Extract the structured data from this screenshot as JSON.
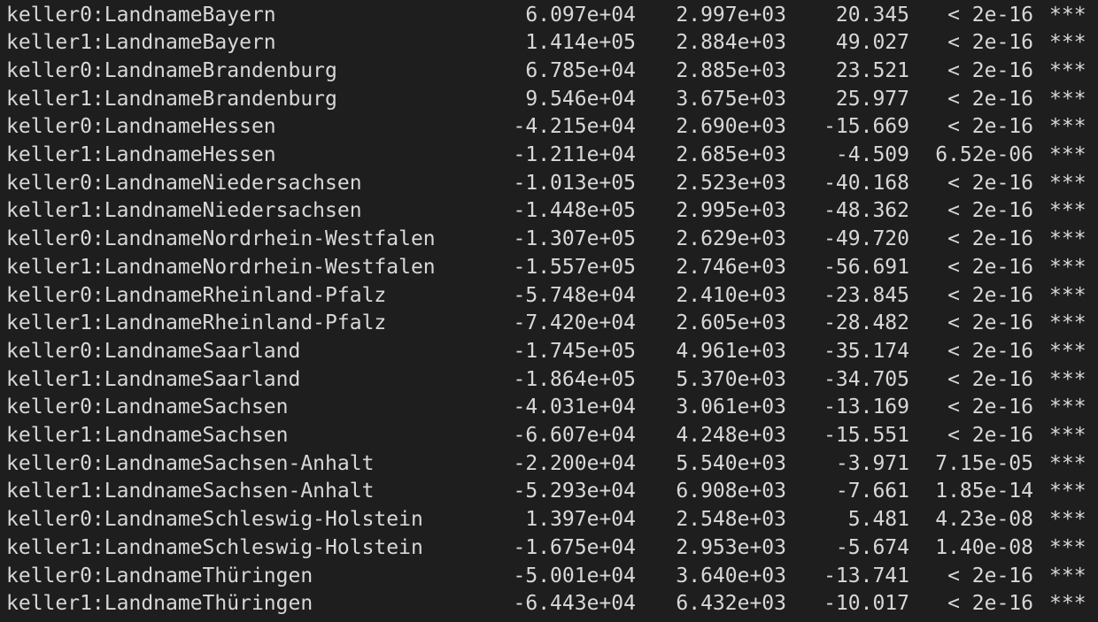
{
  "terminal": {
    "rows": [
      {
        "term": "keller0:LandnameBayern",
        "estimate": "6.097e+04",
        "std_error": "2.997e+03",
        "t_value": "20.345",
        "p_value": "< 2e-16",
        "signif": "***"
      },
      {
        "term": "keller1:LandnameBayern",
        "estimate": "1.414e+05",
        "std_error": "2.884e+03",
        "t_value": "49.027",
        "p_value": "< 2e-16",
        "signif": "***"
      },
      {
        "term": "keller0:LandnameBrandenburg",
        "estimate": "6.785e+04",
        "std_error": "2.885e+03",
        "t_value": "23.521",
        "p_value": "< 2e-16",
        "signif": "***"
      },
      {
        "term": "keller1:LandnameBrandenburg",
        "estimate": "9.546e+04",
        "std_error": "3.675e+03",
        "t_value": "25.977",
        "p_value": "< 2e-16",
        "signif": "***"
      },
      {
        "term": "keller0:LandnameHessen",
        "estimate": "-4.215e+04",
        "std_error": "2.690e+03",
        "t_value": "-15.669",
        "p_value": "< 2e-16",
        "signif": "***"
      },
      {
        "term": "keller1:LandnameHessen",
        "estimate": "-1.211e+04",
        "std_error": "2.685e+03",
        "t_value": "-4.509",
        "p_value": "6.52e-06",
        "signif": "***"
      },
      {
        "term": "keller0:LandnameNiedersachsen",
        "estimate": "-1.013e+05",
        "std_error": "2.523e+03",
        "t_value": "-40.168",
        "p_value": "< 2e-16",
        "signif": "***"
      },
      {
        "term": "keller1:LandnameNiedersachsen",
        "estimate": "-1.448e+05",
        "std_error": "2.995e+03",
        "t_value": "-48.362",
        "p_value": "< 2e-16",
        "signif": "***"
      },
      {
        "term": "keller0:LandnameNordrhein-Westfalen",
        "estimate": "-1.307e+05",
        "std_error": "2.629e+03",
        "t_value": "-49.720",
        "p_value": "< 2e-16",
        "signif": "***"
      },
      {
        "term": "keller1:LandnameNordrhein-Westfalen",
        "estimate": "-1.557e+05",
        "std_error": "2.746e+03",
        "t_value": "-56.691",
        "p_value": "< 2e-16",
        "signif": "***"
      },
      {
        "term": "keller0:LandnameRheinland-Pfalz",
        "estimate": "-5.748e+04",
        "std_error": "2.410e+03",
        "t_value": "-23.845",
        "p_value": "< 2e-16",
        "signif": "***"
      },
      {
        "term": "keller1:LandnameRheinland-Pfalz",
        "estimate": "-7.420e+04",
        "std_error": "2.605e+03",
        "t_value": "-28.482",
        "p_value": "< 2e-16",
        "signif": "***"
      },
      {
        "term": "keller0:LandnameSaarland",
        "estimate": "-1.745e+05",
        "std_error": "4.961e+03",
        "t_value": "-35.174",
        "p_value": "< 2e-16",
        "signif": "***"
      },
      {
        "term": "keller1:LandnameSaarland",
        "estimate": "-1.864e+05",
        "std_error": "5.370e+03",
        "t_value": "-34.705",
        "p_value": "< 2e-16",
        "signif": "***"
      },
      {
        "term": "keller0:LandnameSachsen",
        "estimate": "-4.031e+04",
        "std_error": "3.061e+03",
        "t_value": "-13.169",
        "p_value": "< 2e-16",
        "signif": "***"
      },
      {
        "term": "keller1:LandnameSachsen",
        "estimate": "-6.607e+04",
        "std_error": "4.248e+03",
        "t_value": "-15.551",
        "p_value": "< 2e-16",
        "signif": "***"
      },
      {
        "term": "keller0:LandnameSachsen-Anhalt",
        "estimate": "-2.200e+04",
        "std_error": "5.540e+03",
        "t_value": "-3.971",
        "p_value": "7.15e-05",
        "signif": "***"
      },
      {
        "term": "keller1:LandnameSachsen-Anhalt",
        "estimate": "-5.293e+04",
        "std_error": "6.908e+03",
        "t_value": "-7.661",
        "p_value": "1.85e-14",
        "signif": "***"
      },
      {
        "term": "keller0:LandnameSchleswig-Holstein",
        "estimate": "1.397e+04",
        "std_error": "2.548e+03",
        "t_value": "5.481",
        "p_value": "4.23e-08",
        "signif": "***"
      },
      {
        "term": "keller1:LandnameSchleswig-Holstein",
        "estimate": "-1.675e+04",
        "std_error": "2.953e+03",
        "t_value": "-5.674",
        "p_value": "1.40e-08",
        "signif": "***"
      },
      {
        "term": "keller0:LandnameThüringen",
        "estimate": "-5.001e+04",
        "std_error": "3.640e+03",
        "t_value": "-13.741",
        "p_value": "< 2e-16",
        "signif": "***"
      },
      {
        "term": "keller1:LandnameThüringen",
        "estimate": "-6.443e+04",
        "std_error": "6.432e+03",
        "t_value": "-10.017",
        "p_value": "< 2e-16",
        "signif": "***"
      }
    ]
  }
}
